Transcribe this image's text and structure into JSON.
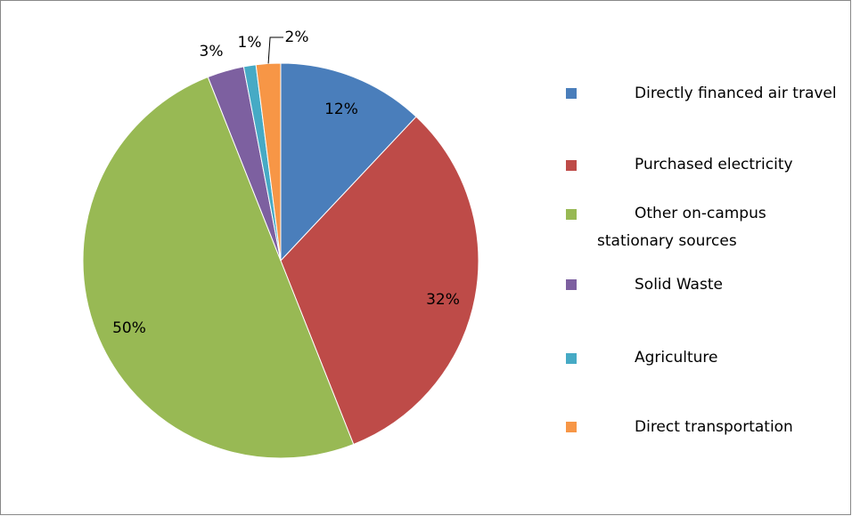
{
  "chart_data": {
    "type": "pie",
    "categories": [
      "Directly financed air travel",
      "Purchased electricity",
      "Other on-campus stationary sources",
      "Solid Waste",
      "Agriculture",
      "Direct transportation"
    ],
    "values": [
      12,
      32,
      50,
      3,
      1,
      2
    ],
    "value_labels": [
      "12%",
      "32%",
      "50%",
      "3%",
      "1%",
      "2%"
    ],
    "colors": [
      "#4a7ebb",
      "#be4b48",
      "#98b954",
      "#7d60a0",
      "#46aac5",
      "#f79646"
    ],
    "legend": "right"
  }
}
